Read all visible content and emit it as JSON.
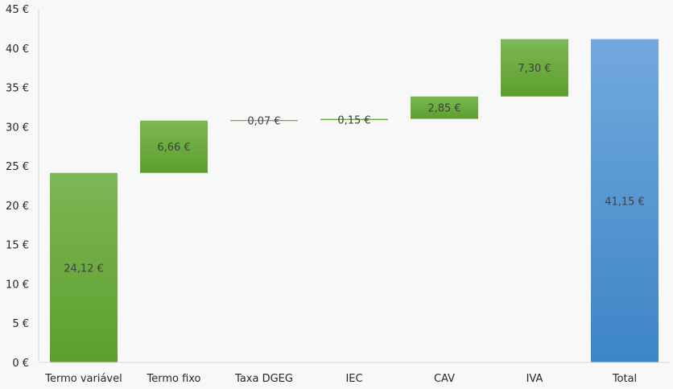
{
  "chart_data": {
    "type": "waterfall",
    "categories": [
      "Termo variável",
      "Termo fixo",
      "Taxa DGEG",
      "IEC",
      "CAV",
      "IVA",
      "Total"
    ],
    "values": [
      24.12,
      6.66,
      0.07,
      0.15,
      2.85,
      7.3,
      41.15
    ],
    "value_labels": [
      "24,12 €",
      "6,66 €",
      "0,07 €",
      "0,15 €",
      "2,85 €",
      "7,30 €",
      "41,15 €"
    ],
    "is_total": [
      false,
      false,
      false,
      false,
      false,
      false,
      true
    ],
    "y_ticks": [
      0,
      5,
      10,
      15,
      20,
      25,
      30,
      35,
      40,
      45
    ],
    "y_tick_labels": [
      "0 €",
      "5 €",
      "10 €",
      "15 €",
      "20 €",
      "25 €",
      "30 €",
      "35 €",
      "40 €",
      "45 €"
    ],
    "ylim": [
      0,
      45
    ],
    "grid": false,
    "legend": "none",
    "colors": {
      "increase_top": "#7cb854",
      "increase_bottom": "#5e9e2e",
      "total_top": "#72a9de",
      "total_bottom": "#3d85c6",
      "axis": "#d9d9d9"
    }
  }
}
